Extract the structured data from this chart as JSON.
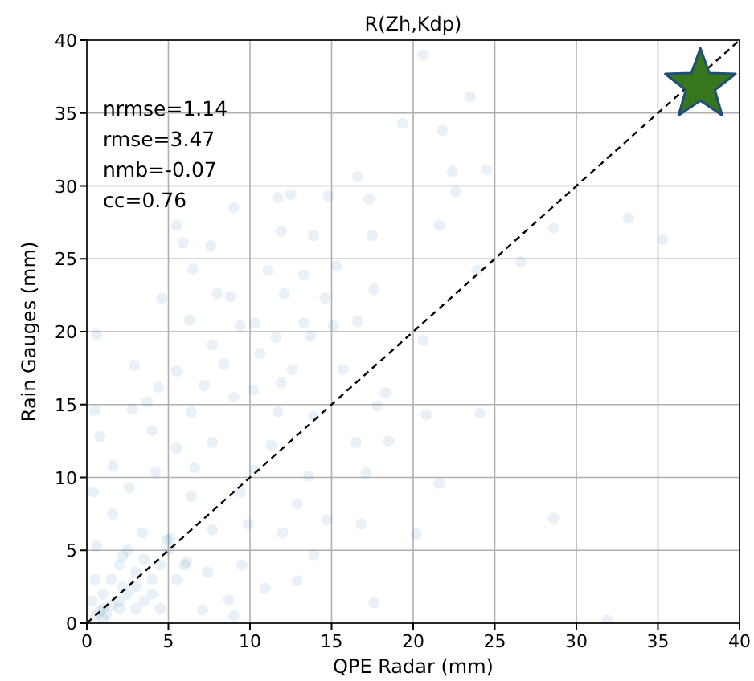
{
  "chart_data": {
    "type": "scatter",
    "title": "R(Zh,Kdp)",
    "xlabel": "QPE Radar (mm)",
    "ylabel": "Rain Gauges (mm)",
    "annotations": [
      "nrmse=1.14",
      "rmse=3.47",
      "nmb=-0.07",
      "cc=0.76"
    ],
    "xlim": [
      0,
      40
    ],
    "ylim": [
      0,
      40
    ],
    "xticks": [
      0,
      5,
      10,
      15,
      20,
      25,
      30,
      35,
      40
    ],
    "yticks": [
      0,
      5,
      10,
      15,
      20,
      25,
      30,
      35,
      40
    ],
    "grid": true,
    "series": [
      {
        "color": "#1f77b4",
        "marker": "circle",
        "x": [
          19.35,
          16.6,
          9.0,
          11.7,
          12.5,
          14.8,
          17.3,
          5.5,
          11.9,
          13.9,
          17.5,
          5.9,
          7.6,
          6.5,
          15.3,
          11.1,
          13.3,
          4.6,
          8.0,
          8.8,
          12.1,
          14.6,
          17.6,
          6.3,
          9.4,
          10.3,
          13.3,
          15.1,
          16.6,
          0.6,
          7.7,
          10.6,
          11.6,
          13.7,
          2.9,
          5.5,
          8.4,
          12.6,
          15.7,
          4.4,
          7.2,
          10.2,
          11.9,
          18.3,
          3.7,
          6.4,
          9.0,
          0.5,
          2.8,
          11.7,
          13.9,
          17.8,
          0.8,
          4.0,
          5.5,
          7.7,
          11.3,
          16.5,
          18.5,
          1.6,
          4.2,
          6.6,
          10.3,
          13.6,
          17.1,
          0.4,
          2.6,
          6.4,
          9.4,
          12.9,
          14.7,
          16.8,
          1.6,
          3.4,
          5.1,
          7.7,
          9.9,
          12.0,
          13.9,
          17.6,
          0.6,
          2.2,
          3.5,
          4.9,
          6.1,
          7.4,
          9.5,
          10.9,
          12.9,
          8.7,
          9.0,
          7.1,
          0.5,
          1.0,
          1.5,
          2.0,
          2.5,
          3.0,
          1.0,
          2.0,
          3.0,
          4.0,
          0.3,
          1.5,
          3.5,
          4.5,
          5.0,
          2.0,
          4.0,
          1.0,
          0.8,
          1.2,
          2.2,
          3.0,
          5.5,
          6.0,
          0.5,
          2.5,
          4.5,
          20.6,
          23.5,
          21.8,
          22.4,
          24.5,
          22.6,
          21.6,
          28.6,
          33.2,
          35.3,
          26.6,
          23.9,
          20.6,
          20.8,
          24.1,
          21.6,
          28.6,
          20.2,
          31.9
        ],
        "values": [
          34.3,
          30.6,
          28.5,
          29.2,
          29.4,
          29.3,
          29.1,
          27.3,
          26.9,
          26.6,
          26.6,
          26.1,
          25.9,
          24.3,
          24.5,
          24.2,
          23.9,
          22.3,
          22.6,
          22.4,
          22.6,
          22.3,
          22.9,
          20.8,
          20.4,
          20.6,
          20.6,
          20.4,
          20.7,
          19.8,
          19.1,
          18.5,
          19.6,
          19.7,
          17.7,
          17.3,
          17.8,
          17.4,
          17.4,
          16.2,
          16.3,
          16.0,
          16.5,
          15.8,
          15.2,
          14.5,
          15.5,
          14.6,
          14.7,
          14.5,
          14.2,
          14.9,
          12.8,
          13.2,
          12.0,
          12.4,
          12.2,
          12.4,
          12.5,
          10.8,
          10.4,
          10.7,
          10.5,
          10.1,
          10.3,
          9.0,
          9.3,
          8.7,
          9.0,
          8.2,
          7.1,
          6.8,
          7.5,
          6.2,
          5.8,
          6.4,
          6.8,
          6.2,
          4.7,
          1.4,
          5.3,
          4.6,
          4.4,
          5.7,
          4.2,
          3.5,
          4.0,
          2.4,
          2.9,
          1.6,
          0.5,
          0.9,
          0.5,
          1.0,
          1.2,
          1.5,
          2.0,
          2.5,
          2.0,
          1.0,
          3.5,
          3.0,
          1.5,
          3.0,
          1.5,
          4.0,
          5.0,
          4.0,
          2.0,
          0.3,
          0.8,
          0.6,
          2.5,
          1.0,
          3.0,
          4.0,
          3.0,
          5.0,
          1.0,
          39.0,
          36.1,
          33.8,
          31.0,
          31.1,
          29.6,
          27.3,
          27.1,
          27.8,
          26.3,
          24.8,
          24.2,
          19.4,
          14.3,
          14.4,
          9.6,
          7.2,
          6.1,
          0.2
        ]
      },
      {
        "type": "line",
        "color": "#000000",
        "line_style": "dashed",
        "marker": "none",
        "x": [
          0,
          40
        ],
        "values": [
          0,
          40
        ]
      }
    ]
  }
}
